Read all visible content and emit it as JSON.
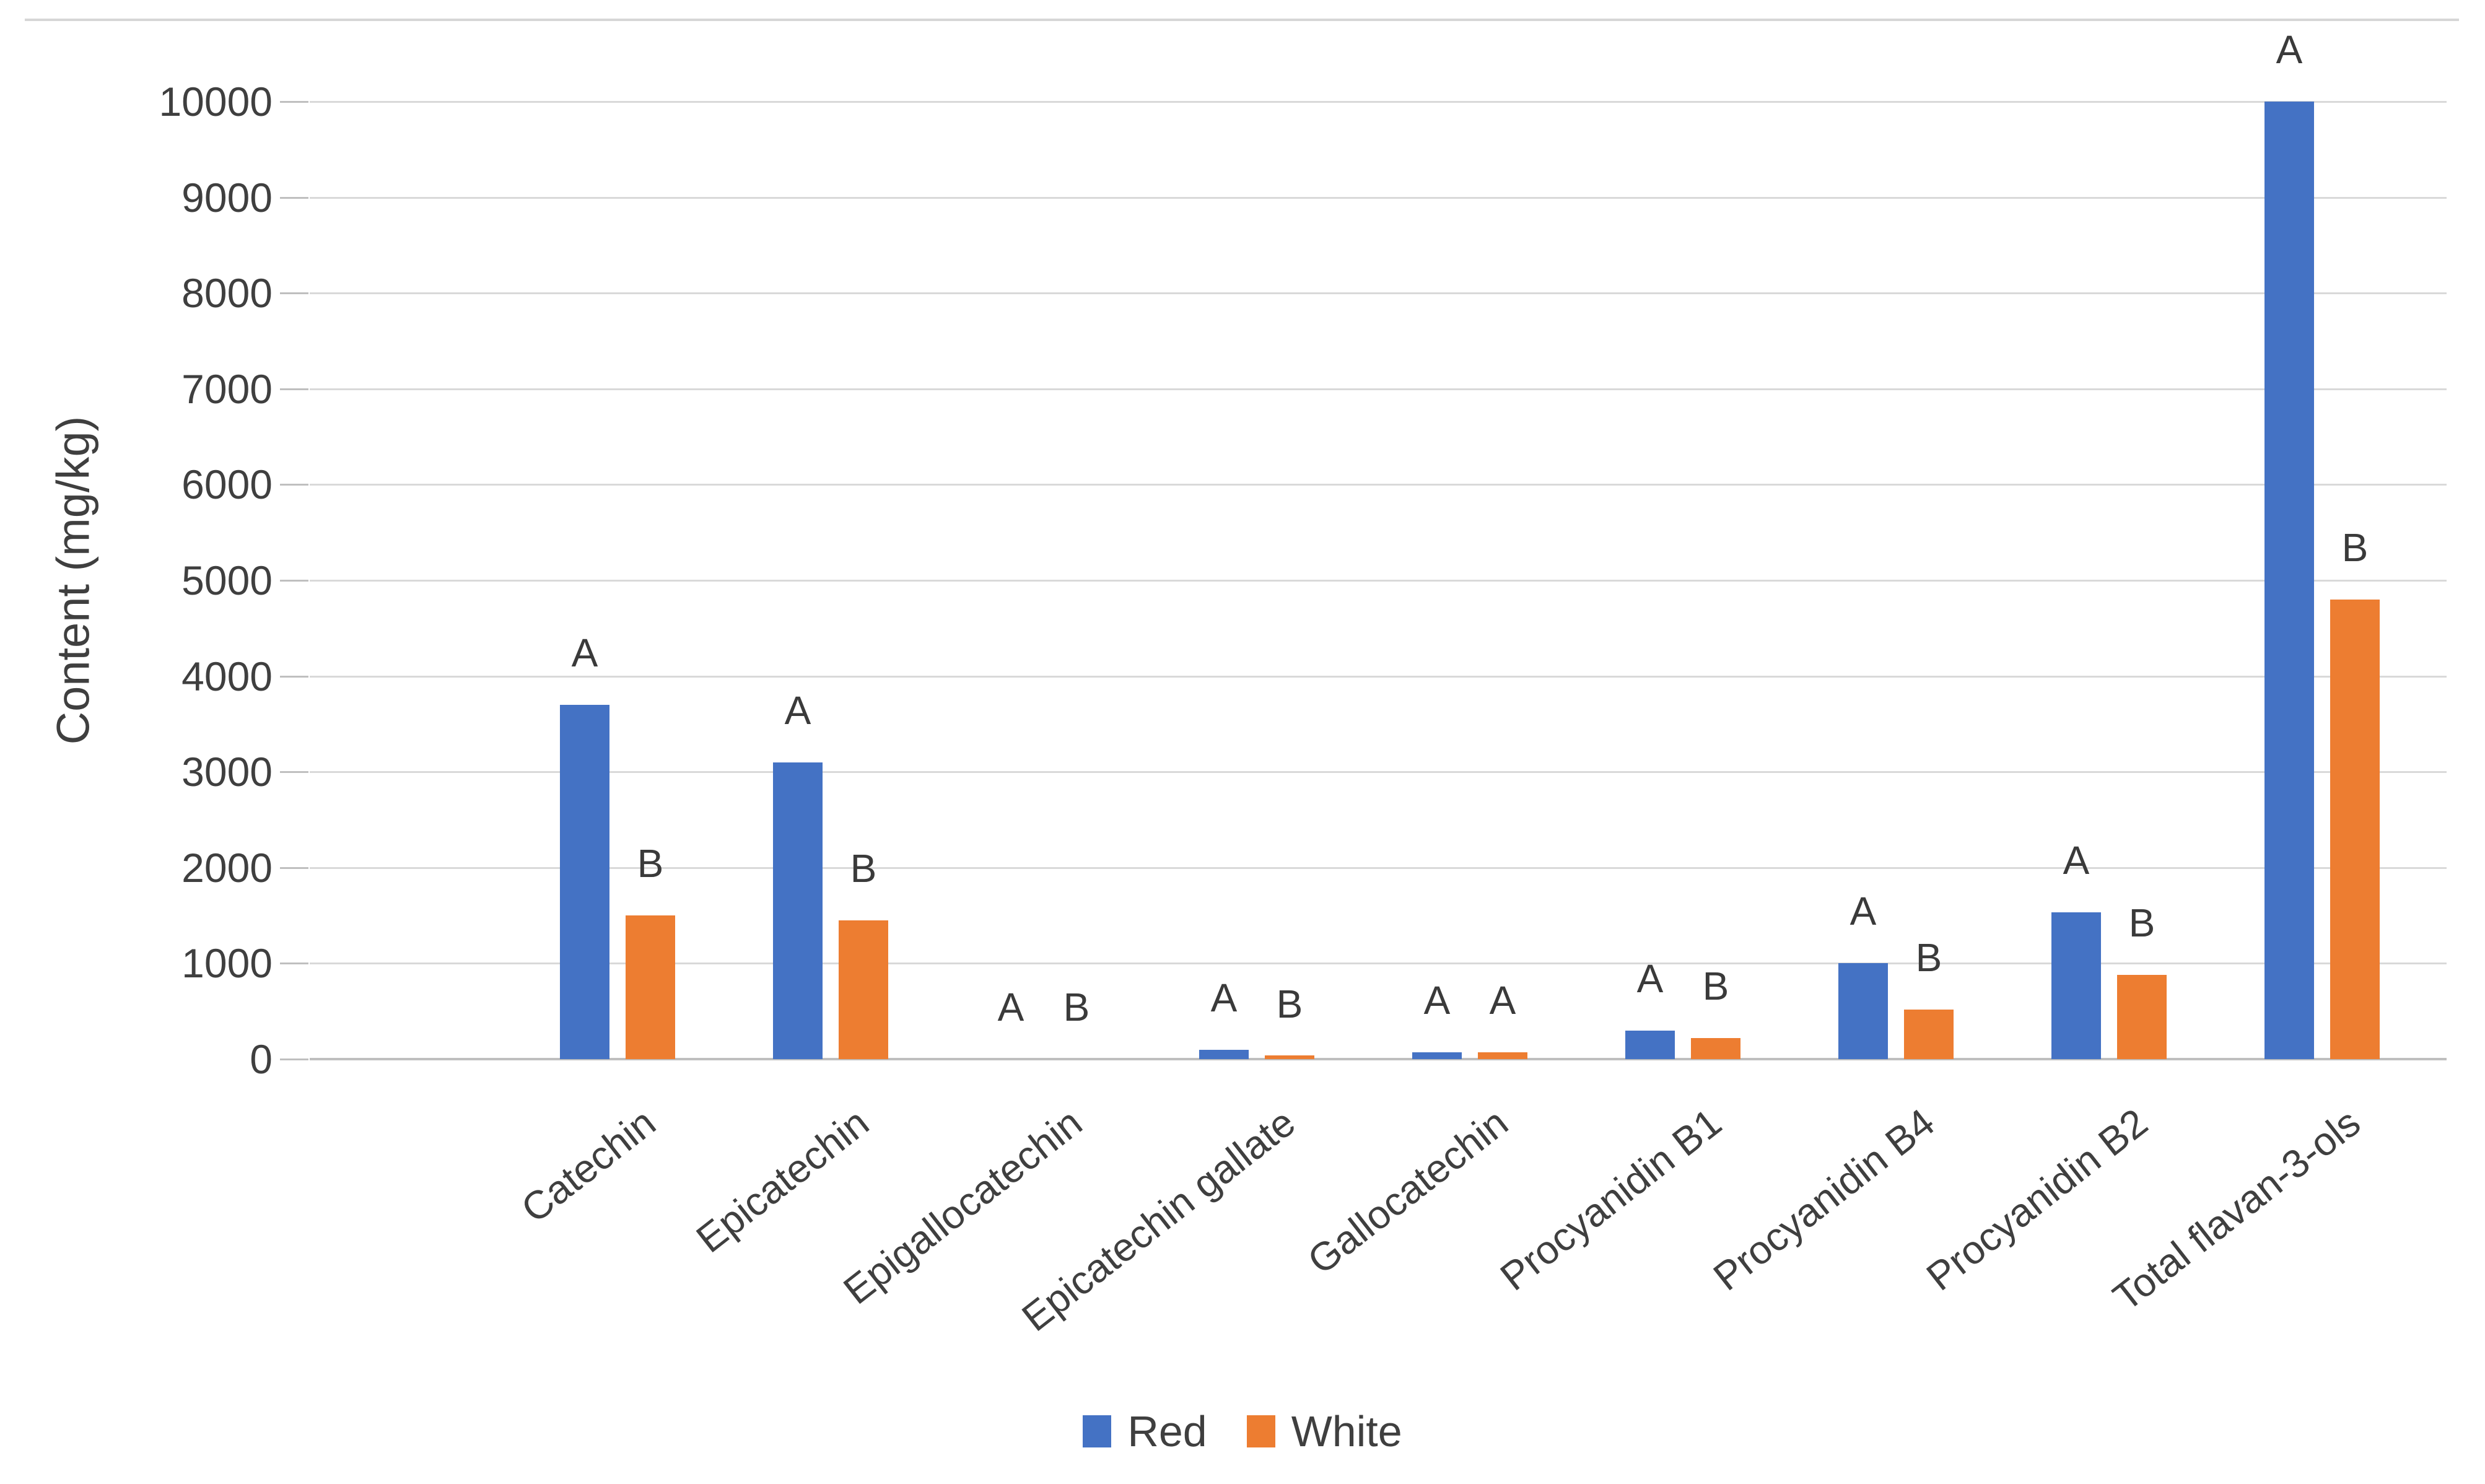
{
  "chart_data": {
    "type": "bar",
    "title": "",
    "xlabel": "",
    "ylabel": "Content (mg/kg)",
    "ylim": [
      0,
      10000
    ],
    "ytick_step": 1000,
    "yticks": [
      0,
      1000,
      2000,
      3000,
      4000,
      5000,
      6000,
      7000,
      8000,
      9000,
      10000
    ],
    "grid": true,
    "legend_position": "bottom",
    "categories": [
      "Catechin",
      "Epicatechin",
      "Epigallocatechin",
      "Epicatechin gallate",
      "Gallocatechin",
      "Procyanidin B1",
      "Procyanidin B4",
      "Procyanidin B2",
      "Total flavan-3-ols"
    ],
    "series": [
      {
        "name": "Red",
        "color": "#4472C4",
        "values": [
          3700,
          3100,
          0,
          100,
          70,
          300,
          1000,
          1530,
          10000
        ],
        "letters": [
          "A",
          "A",
          "A",
          "A",
          "A",
          "A",
          "A",
          "A",
          "A"
        ]
      },
      {
        "name": "White",
        "color": "#ED7D31",
        "values": [
          1500,
          1450,
          0,
          30,
          70,
          220,
          520,
          880,
          4800
        ],
        "letters": [
          "B",
          "B",
          "B",
          "B",
          "A",
          "B",
          "B",
          "B",
          "B"
        ]
      }
    ]
  },
  "legend": {
    "items": [
      {
        "label": "Red",
        "color": "#4472C4"
      },
      {
        "label": "White",
        "color": "#ED7D31"
      }
    ]
  },
  "colors": {
    "red_series": "#4472C4",
    "white_series": "#ED7D31",
    "gridline": "#D9D9D9",
    "axis_line": "#BFBFBF",
    "text": "#3F3F3F"
  }
}
